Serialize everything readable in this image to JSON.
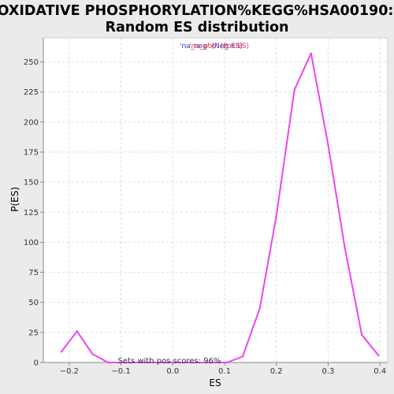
{
  "chart_data": {
    "type": "line",
    "title_lines": [
      "OXIDATIVE PHOSPHORYLATION%KEGG%HSA00190:",
      "Random ES distribution"
    ],
    "xlabel": "ES",
    "ylabel": "P(ES)",
    "xlim": [
      -0.25,
      0.415
    ],
    "ylim": [
      0,
      270
    ],
    "x_ticks": [
      -0.2,
      -0.1,
      0.0,
      0.1,
      0.2,
      0.3,
      0.4
    ],
    "x_tick_labels": [
      "−0.2",
      "−0.1",
      "0.0",
      "0.1",
      "0.2",
      "0.3",
      "0.4"
    ],
    "y_ticks": [
      0,
      25,
      50,
      75,
      100,
      125,
      150,
      175,
      200,
      225,
      250
    ],
    "y_tick_labels": [
      "0",
      "25",
      "50",
      "75",
      "100",
      "125",
      "150",
      "175",
      "200",
      "225",
      "250"
    ],
    "grid": true,
    "legend": {
      "placement": "top-center",
      "entries": [
        {
          "label": "'na_neg' (Neg ES)",
          "color": "#3333cc"
        },
        {
          "label": "'na_pos' (Pos ES)",
          "color": "#ff3333"
        }
      ]
    },
    "annotation": "Sets with pos scores: 96%",
    "series": [
      {
        "color": "#ee44ee",
        "x": [
          -0.215,
          -0.185,
          -0.155,
          -0.125,
          -0.095,
          -0.065,
          -0.035,
          0.0,
          0.035,
          0.07,
          0.105,
          0.135,
          0.168,
          0.2,
          0.235,
          0.267,
          0.3,
          0.332,
          0.365,
          0.397
        ],
        "y": [
          9,
          26,
          7,
          0,
          0,
          0,
          0,
          0,
          0,
          0,
          0,
          5,
          45,
          122,
          227,
          257,
          181,
          96,
          23,
          6
        ]
      }
    ]
  }
}
